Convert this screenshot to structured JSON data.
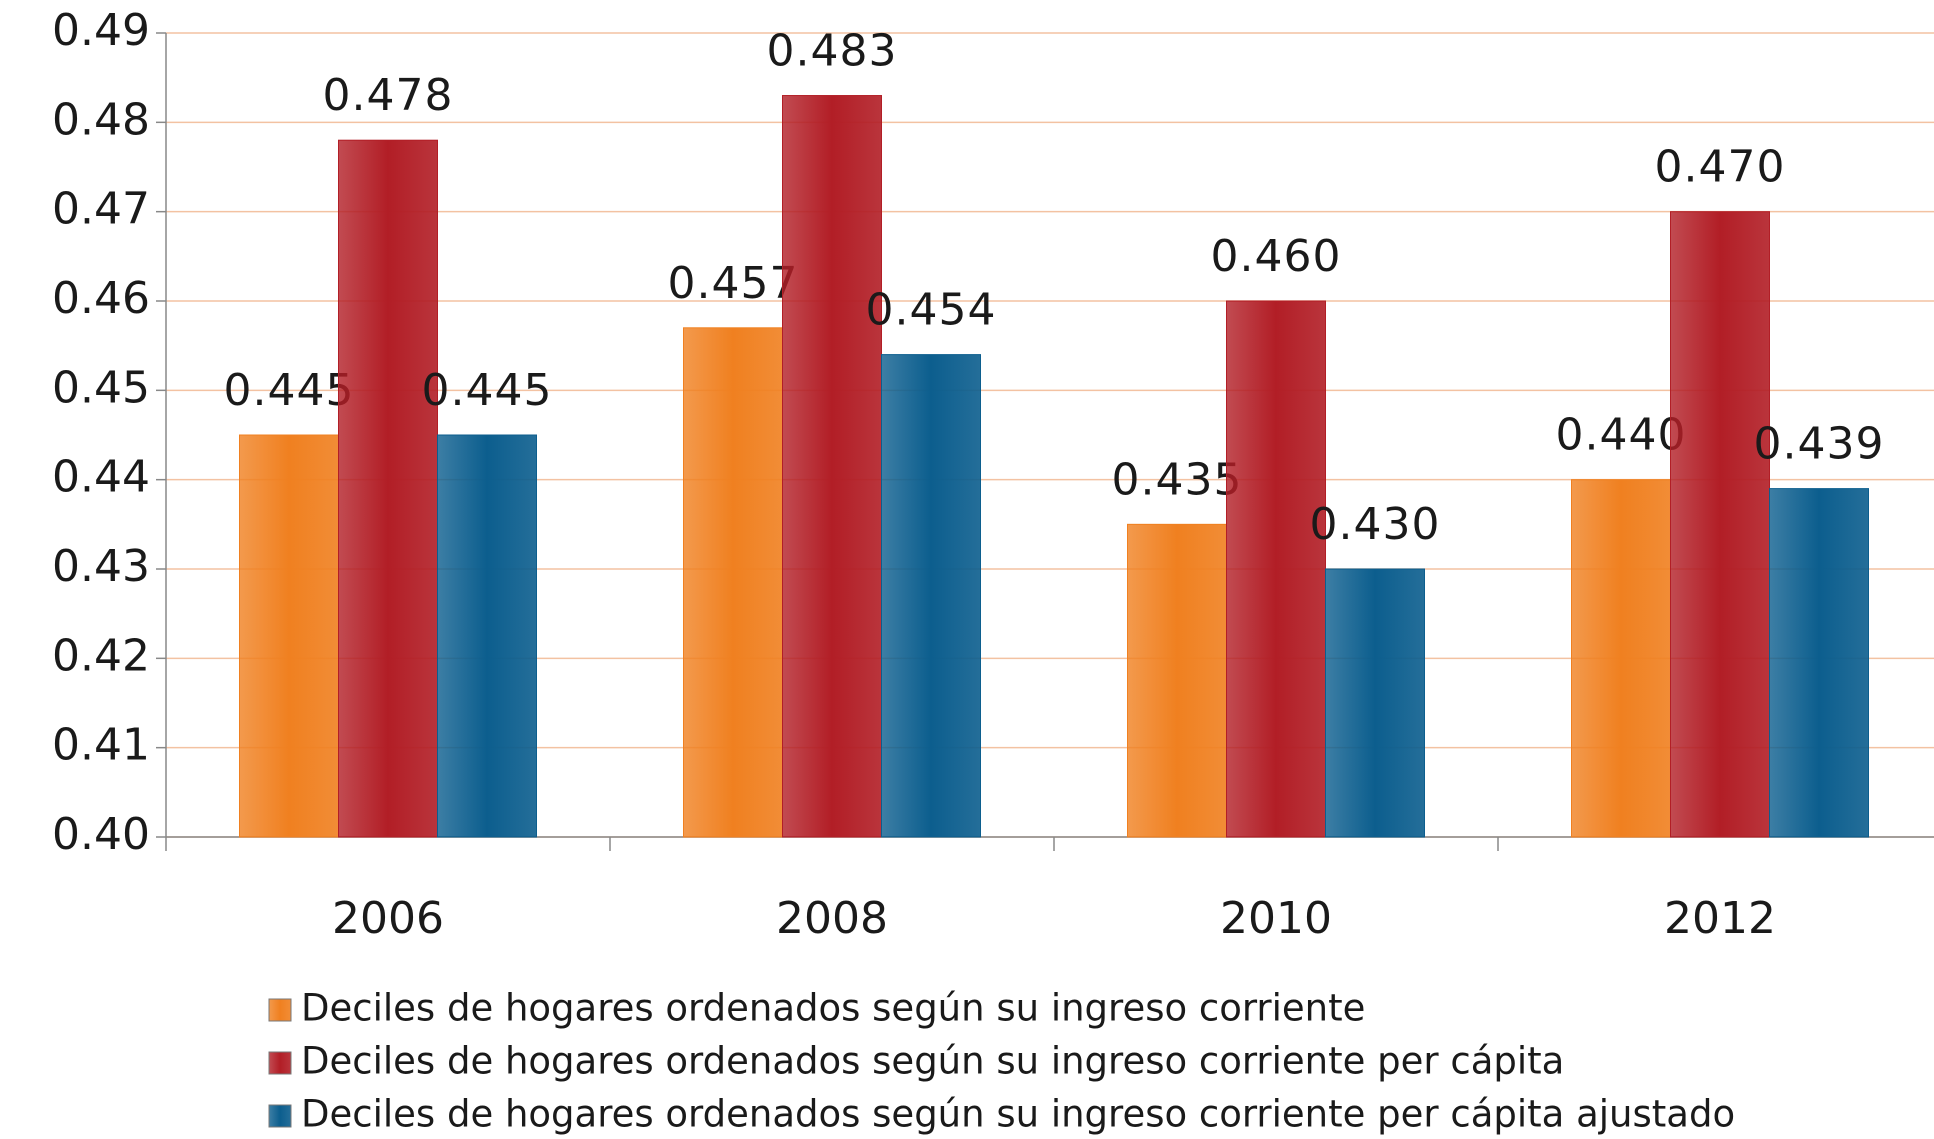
{
  "chart_data": {
    "type": "bar",
    "categories": [
      "2006",
      "2008",
      "2010",
      "2012"
    ],
    "series": [
      {
        "name": "Deciles de hogares ordenados según su ingreso corriente",
        "color": "#f08020",
        "values": [
          0.445,
          0.457,
          0.435,
          0.44
        ],
        "value_labels": [
          "0.445",
          "0.457",
          "0.435",
          "0.440"
        ]
      },
      {
        "name": "Deciles de hogares ordenados según su ingreso corriente per cápita",
        "color": "#b21e26",
        "values": [
          0.478,
          0.483,
          0.46,
          0.47
        ],
        "value_labels": [
          "0.478",
          "0.483",
          "0.460",
          "0.470"
        ]
      },
      {
        "name": "Deciles de hogares ordenados según su ingreso corriente per cápita ajustado",
        "color": "#0c5e8e",
        "values": [
          0.445,
          0.454,
          0.43,
          0.439
        ],
        "value_labels": [
          "0.445",
          "0.454",
          "0.430",
          "0.439"
        ]
      }
    ],
    "ylim": [
      0.4,
      0.49
    ],
    "yticks": [
      {
        "value": 0.4,
        "label": "0.40"
      },
      0.41,
      0.42,
      0.43,
      0.44,
      0.45,
      0.46,
      0.47,
      0.48,
      0.49
    ],
    "grid": true,
    "legend": "bottom"
  }
}
